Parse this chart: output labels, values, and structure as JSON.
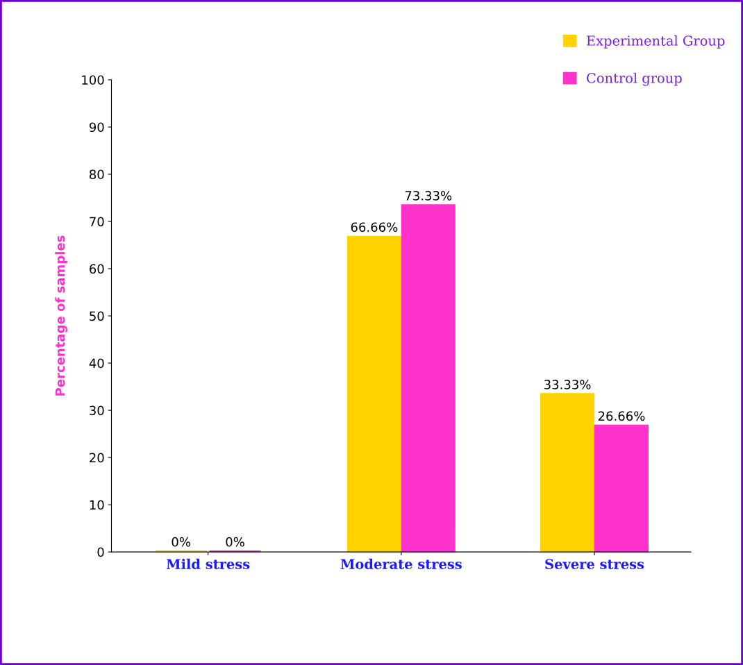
{
  "chart_data": {
    "type": "bar",
    "ylabel": "Percentage of samples",
    "categories": [
      "Mild stress",
      "Moderate stress",
      "Severe stress"
    ],
    "series": [
      {
        "name": "Experimental Group",
        "color": "#ffd200",
        "values": [
          0,
          66.66,
          33.33
        ],
        "value_labels": [
          "0%",
          "66.66%",
          "33.33%"
        ]
      },
      {
        "name": "Control group",
        "color": "#ff33cc",
        "values": [
          0,
          73.33,
          26.66
        ],
        "value_labels": [
          "0%",
          "73.33%",
          "26.66%"
        ]
      }
    ],
    "ylim": [
      0,
      100
    ],
    "yticks": [
      0,
      10,
      20,
      30,
      40,
      50,
      60,
      70,
      80,
      90,
      100
    ],
    "grid": false,
    "legend": "top right"
  }
}
